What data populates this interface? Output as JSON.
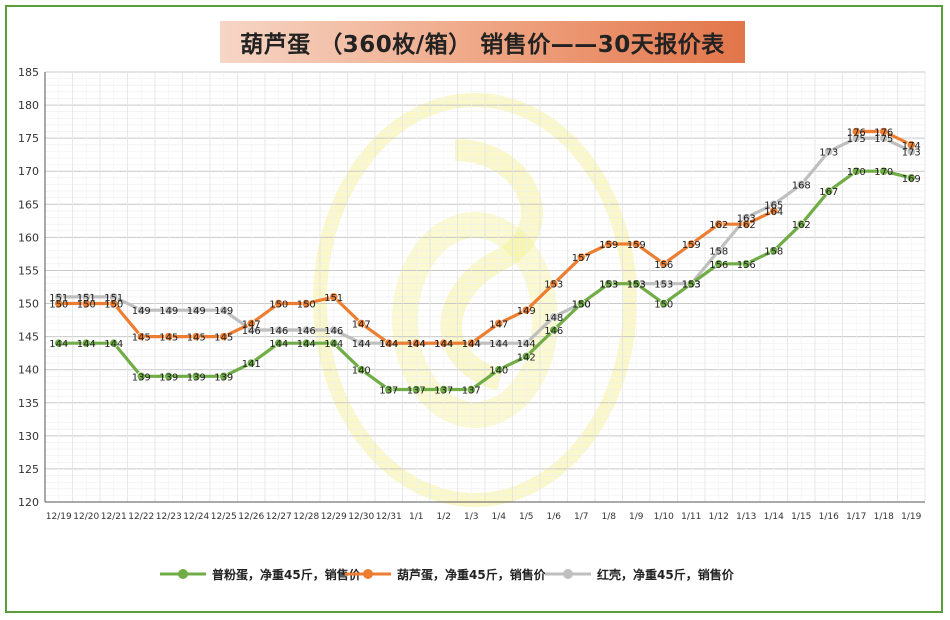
{
  "chart_data": {
    "type": "line",
    "title": "葫芦蛋 （360枚/箱） 销售价——30天报价表",
    "categories": [
      "12/19",
      "12/20",
      "12/21",
      "12/22",
      "12/23",
      "12/24",
      "12/25",
      "12/26",
      "12/27",
      "12/28",
      "12/29",
      "12/30",
      "12/31",
      "1/1",
      "1/2",
      "1/3",
      "1/4",
      "1/5",
      "1/6",
      "1/7",
      "1/8",
      "1/9",
      "1/10",
      "1/11",
      "1/12",
      "1/13",
      "1/14",
      "1/15",
      "1/16",
      "1/17",
      "1/18",
      "1/19"
    ],
    "ylim": [
      120,
      185
    ],
    "yticks": [
      120,
      125,
      130,
      135,
      140,
      145,
      150,
      155,
      160,
      165,
      170,
      175,
      180,
      185
    ],
    "grid": true,
    "legend_position": "bottom",
    "series": [
      {
        "name": "普粉蛋，净重45斤，销售价",
        "color": "#70ad47",
        "values": [
          144,
          144,
          144,
          139,
          139,
          139,
          139,
          141,
          144,
          144,
          144,
          140,
          137,
          137,
          137,
          137,
          140,
          142,
          146,
          150,
          153,
          153,
          150,
          153,
          156,
          156,
          158,
          162,
          167,
          170,
          170,
          169
        ]
      },
      {
        "name": "葫芦蛋，净重45斤，销售价",
        "color": "#ed7d31",
        "values": [
          150,
          150,
          150,
          145,
          145,
          145,
          145,
          147,
          150,
          150,
          151,
          147,
          144,
          144,
          144,
          144,
          147,
          149,
          153,
          157,
          159,
          159,
          156,
          159,
          162,
          162,
          164,
          null,
          null,
          176,
          176,
          174
        ]
      },
      {
        "name": "红壳，净重45斤，销售价",
        "color": "#bfbfbf",
        "values": [
          151,
          151,
          151,
          149,
          149,
          149,
          149,
          146,
          146,
          146,
          146,
          144,
          144,
          144,
          144,
          144,
          144,
          144,
          148,
          150,
          153,
          153,
          153,
          153,
          158,
          163,
          165,
          168,
          173,
          175,
          175,
          173
        ]
      }
    ]
  }
}
